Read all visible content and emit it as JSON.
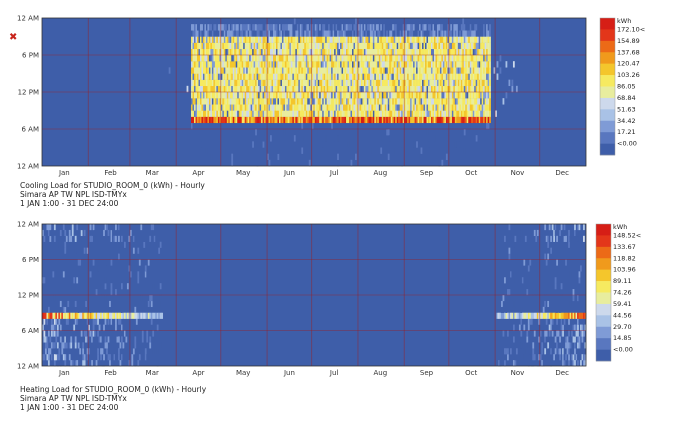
{
  "close_icon_glyph": "✖",
  "colors": {
    "heatmap_scale": [
      "#3e5ea9",
      "#5977bf",
      "#7f9bd6",
      "#a9c2e6",
      "#cdd9ec",
      "#e8ed9e",
      "#f6ea60",
      "#f4c62c",
      "#f09a1c",
      "#ec6a17",
      "#e3361a",
      "#d61e16"
    ],
    "grid": "#a31a1a",
    "frame": "#333333"
  },
  "chart_data": [
    {
      "type": "heatmap",
      "caption_lines": [
        "Cooling Load for STUDIO_ROOM_0 (kWh) - Hourly",
        "Simara AP TW NPL ISD-TMYx",
        "1 JAN 1:00 - 31 DEC 24:00"
      ],
      "x_tick_labels": [
        "Jan",
        "Feb",
        "Mar",
        "Apr",
        "May",
        "Jun",
        "Jul",
        "Aug",
        "Sep",
        "Oct",
        "Nov",
        "Dec"
      ],
      "y_tick_labels": [
        "12 AM",
        "6 PM",
        "12 PM",
        "6 AM",
        "12 AM"
      ],
      "legend_unit": "kWh",
      "legend_labels": [
        "172.10<",
        "154.89",
        "137.68",
        "120.47",
        "103.26",
        "86.05",
        "68.84",
        "51.63",
        "34.42",
        "17.21",
        "<0.00"
      ],
      "zlim": [
        0,
        172.1
      ],
      "season_start_day": 100,
      "season_end_day": 300,
      "daytime_hours": [
        7,
        20
      ],
      "peak_hour": 7,
      "daytime_level": 95,
      "peak_level": 165
    },
    {
      "type": "heatmap",
      "caption_lines": [
        "Heating Load for STUDIO_ROOM_0 (kWh) - Hourly",
        "Simara AP TW NPL ISD-TMYx",
        "1 JAN 1:00 - 31 DEC 24:00"
      ],
      "x_tick_labels": [
        "Jan",
        "Feb",
        "Mar",
        "Apr",
        "May",
        "Jun",
        "Jul",
        "Aug",
        "Sep",
        "Oct",
        "Nov",
        "Dec"
      ],
      "y_tick_labels": [
        "12 AM",
        "6 PM",
        "12 PM",
        "6 AM",
        "12 AM"
      ],
      "legend_unit": "kWh",
      "legend_labels": [
        "148.52<",
        "133.67",
        "118.82",
        "103.96",
        "89.11",
        "74.26",
        "59.41",
        "44.56",
        "29.70",
        "14.85",
        "<0.00"
      ],
      "zlim": [
        0,
        148.52
      ],
      "season_end_day": 80,
      "season_start_day": 305,
      "peak_hour": 8,
      "peak_level": 140,
      "background_level": 55
    }
  ]
}
